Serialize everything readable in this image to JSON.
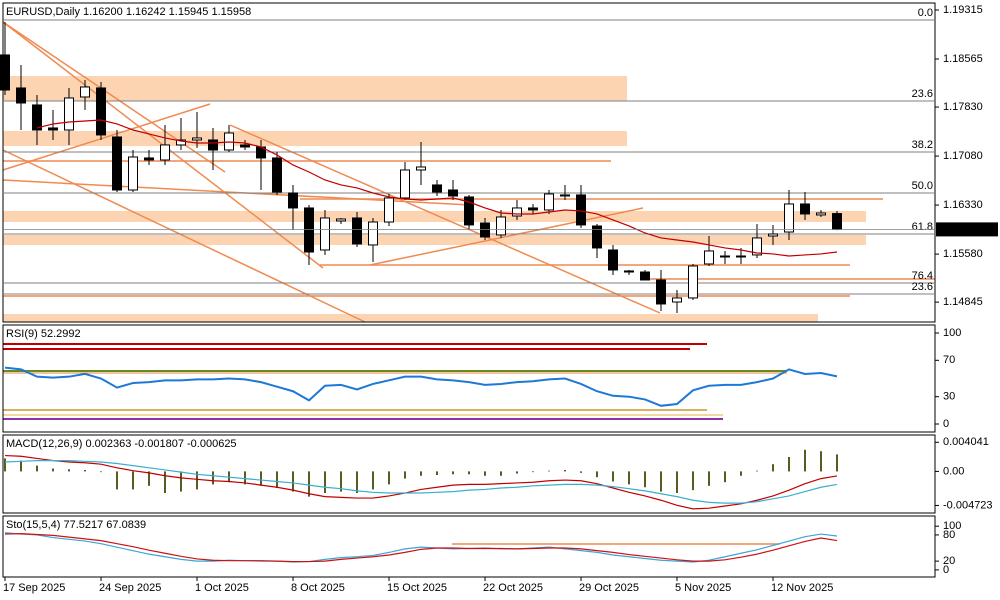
{
  "chart_data": [
    {
      "type": "candlestick",
      "title": "EURUSD,Daily  1.16200 1.16242 1.15945 1.15958",
      "categories": [
        "17 Sep 2025",
        null,
        null,
        null,
        null,
        null,
        "24 Sep 2025",
        null,
        null,
        null,
        null,
        null,
        "1 Oct 2025",
        null,
        null,
        null,
        null,
        null,
        "8 Oct 2025",
        null,
        null,
        null,
        null,
        null,
        "15 Oct 2025",
        null,
        null,
        null,
        null,
        null,
        "22 Oct 2025",
        null,
        null,
        null,
        null,
        null,
        "29 Oct 2025",
        null,
        null,
        null,
        null,
        null,
        "5 Nov 2025",
        null,
        null,
        null,
        null,
        null,
        "12 Nov 2025",
        null,
        null,
        null,
        null
      ],
      "open": [
        1.18627,
        1.18122,
        1.17862,
        1.1751,
        1.17479,
        1.17984,
        1.18122,
        1.17372,
        1.16561,
        1.17051,
        1.1702,
        1.1725,
        1.17326,
        1.17326,
        1.17173,
        1.1725,
        1.17219,
        1.17051,
        1.16515,
        1.16286,
        1.15643,
        1.16087,
        1.16133,
        1.1572,
        1.16071,
        1.16439,
        1.16867,
        1.16638,
        1.16561,
        1.16454,
        1.16056,
        1.15873,
        1.16163,
        1.16286,
        1.16255,
        1.16469,
        1.16485,
        1.1601,
        1.15643,
        1.15322,
        1.15306,
        1.15184,
        1.14847,
        1.14909,
        1.15429,
        1.15536,
        1.15536,
        1.15567,
        1.15857,
        1.15918,
        1.16347,
        1.16179,
        1.162
      ],
      "high": [
        1.19131,
        1.18474,
        1.18015,
        1.17785,
        1.18122,
        1.18244,
        1.18213,
        1.17479,
        1.17173,
        1.17173,
        1.17556,
        1.17663,
        1.17754,
        1.1751,
        1.17556,
        1.17326,
        1.17326,
        1.17142,
        1.16638,
        1.16332,
        1.16255,
        1.16133,
        1.16224,
        1.16133,
        1.165,
        1.16989,
        1.17295,
        1.16714,
        1.16714,
        1.16485,
        1.16133,
        1.16255,
        1.16408,
        1.16347,
        1.16561,
        1.16638,
        1.16638,
        1.16041,
        1.1572,
        1.15337,
        1.15337,
        1.15337,
        1.15031,
        1.15429,
        1.15857,
        1.15628,
        1.15674,
        1.16041,
        1.16026,
        1.16561,
        1.1653,
        1.16255,
        1.16242
      ],
      "low": [
        1.18015,
        1.17479,
        1.1725,
        1.17326,
        1.1725,
        1.17785,
        1.17326,
        1.1653,
        1.1653,
        1.16944,
        1.16944,
        1.17173,
        1.17204,
        1.16867,
        1.17142,
        1.17173,
        1.16561,
        1.16485,
        1.15949,
        1.15414,
        1.15567,
        1.16041,
        1.15689,
        1.15459,
        1.1601,
        1.16408,
        1.16638,
        1.16469,
        1.16408,
        1.15949,
        1.15796,
        1.15827,
        1.16102,
        1.16194,
        1.16194,
        1.16408,
        1.1598,
        1.15521,
        1.15261,
        1.15261,
        1.15184,
        1.1471,
        1.14679,
        1.14878,
        1.15398,
        1.15429,
        1.15429,
        1.15521,
        1.1572,
        1.15796,
        1.16102,
        1.16148,
        1.15945
      ],
      "close": [
        1.18091,
        1.17892,
        1.17479,
        1.17479,
        1.17969,
        1.18137,
        1.17403,
        1.16561,
        1.17066,
        1.1702,
        1.1725,
        1.17326,
        1.17357,
        1.17173,
        1.17433,
        1.17219,
        1.17051,
        1.1653,
        1.16286,
        1.15612,
        1.16133,
        1.16117,
        1.15735,
        1.16071,
        1.16439,
        1.16867,
        1.16913,
        1.1653,
        1.16469,
        1.16026,
        1.15842,
        1.16148,
        1.16286,
        1.16255,
        1.165,
        1.16485,
        1.16026,
        1.15674,
        1.15337,
        1.15306,
        1.15184,
        1.14817,
        1.14909,
        1.15398,
        1.15628,
        1.15551,
        1.15551,
        1.15827,
        1.15888,
        1.16347,
        1.16194,
        1.16209,
        1.15958
      ],
      "up_color": "#ffffff",
      "down_color": "#000000",
      "series": [
        {
          "style": "line",
          "color": "#c00000",
          "values": [
            null,
            null,
            1.1751,
            1.17571,
            1.17601,
            1.17617,
            1.17632,
            1.17571,
            1.17479,
            1.17418,
            1.17357,
            1.17311,
            1.1728,
            1.1728,
            1.17295,
            1.1728,
            1.17219,
            1.17097,
            1.16944,
            1.16836,
            1.16714,
            1.16638,
            1.16592,
            1.16515,
            1.16454,
            1.16423,
            1.16408,
            1.16423,
            1.16439,
            1.16377,
            1.16286,
            1.16209,
            1.16194,
            1.16194,
            1.16224,
            1.16255,
            1.1624,
            1.16194,
            1.16102,
            1.1601,
            1.15903,
            1.15827,
            1.15796,
            1.15765,
            1.1572,
            1.15674,
            1.15643,
            1.15597,
            1.15582,
            1.15551,
            1.15567,
            1.15582,
            1.15612
          ]
        }
      ],
      "levels": [
        {
          "value": 1.19162,
          "label": "0.0"
        },
        {
          "value": 1.17923,
          "label": "23.6"
        },
        {
          "value": 1.17142,
          "label": "38.2"
        },
        {
          "value": 1.16515,
          "label": "50.0"
        },
        {
          "value": 1.15888,
          "label": "61.8"
        },
        {
          "value": 1.15138,
          "label": "76.4"
        },
        {
          "value": 1.1497,
          "label": "23.6"
        }
      ],
      "ylim": [
        1.14541,
        1.19422
      ],
      "yticks": [
        1.19315,
        1.18565,
        {
          "value": 1.1783,
          "label": "1.17830"
        },
        {
          "value": 1.1708,
          "label": "1.17080"
        },
        {
          "value": 1.1633,
          "label": "1.16330"
        },
        {
          "value": 1.1558,
          "label": "1.15580"
        },
        1.14845
      ],
      "grid": false
    },
    {
      "type": "line",
      "title": "RSI(9) 52.2992",
      "series": [
        {
          "style": "line",
          "color": "#1e78d8",
          "values": [
            62,
            60,
            52,
            51,
            52,
            55,
            50,
            40,
            45,
            46,
            48,
            48,
            49,
            49,
            50,
            49,
            46,
            41,
            36,
            26,
            42,
            43,
            38,
            44,
            48,
            52,
            52,
            49,
            48,
            46,
            43,
            44,
            46,
            47,
            49,
            50,
            44,
            36,
            31,
            30,
            27,
            20,
            22,
            37,
            42,
            43,
            43,
            46,
            50,
            60,
            55,
            56,
            52.2992
          ]
        }
      ],
      "ylim": [
        -8.8,
        108.8
      ],
      "yticks": [
        100,
        70,
        30,
        0
      ],
      "grid": false
    },
    {
      "type": "bar",
      "title": "MACD(12,26,9) 0.002363 -0.001807 -0.000625",
      "series": [
        {
          "style": "bar",
          "color": "#5a5a22",
          "values": [
            0.0018,
            0.0015,
            0.0008,
            0.0004,
            0.0003,
            0.0002,
            -0.0001,
            -0.0025,
            -0.0025,
            -0.002,
            -0.003,
            -0.0028,
            -0.0025,
            -0.0018,
            -0.0015,
            -0.0018,
            -0.002,
            -0.0023,
            -0.0028,
            -0.0035,
            -0.003,
            -0.0028,
            -0.003,
            -0.0025,
            -0.0018,
            -0.001,
            -0.0006,
            -0.0005,
            -0.0004,
            -0.0004,
            -0.0006,
            -0.0006,
            -0.0003,
            -0.0001,
            0.0001,
            0.0002,
            -0.0002,
            -0.0008,
            -0.0014,
            -0.0018,
            -0.0022,
            -0.0028,
            -0.003,
            -0.0026,
            -0.002,
            -0.0015,
            -0.0006,
            0.0001,
            0.001,
            0.002,
            0.003,
            0.0028,
            0.002363
          ]
        },
        {
          "style": "line",
          "color": "#c00000",
          "values": [
            0.0022,
            0.0021,
            0.0018,
            0.0015,
            0.0013,
            0.0012,
            0.001,
            0.0005,
            0.0001,
            -0.0002,
            -0.0006,
            -0.0009,
            -0.0011,
            -0.0013,
            -0.0014,
            -0.0016,
            -0.0019,
            -0.0022,
            -0.0026,
            -0.0031,
            -0.0035,
            -0.0036,
            -0.0037,
            -0.0037,
            -0.0034,
            -0.003,
            -0.0025,
            -0.0022,
            -0.0019,
            -0.0018,
            -0.0018,
            -0.0017,
            -0.0016,
            -0.0015,
            -0.0013,
            -0.0012,
            -0.0013,
            -0.0017,
            -0.0023,
            -0.0029,
            -0.0034,
            -0.004,
            -0.0047,
            -0.0052,
            -0.0051,
            -0.0048,
            -0.0045,
            -0.004,
            -0.0034,
            -0.0026,
            -0.0017,
            -0.001,
            -0.000625
          ]
        },
        {
          "style": "line",
          "color": "#3aaed0",
          "values": [
            0.0013,
            0.0014,
            0.0015,
            0.0015,
            0.0015,
            0.0014,
            0.0013,
            0.0011,
            0.0008,
            0.0005,
            0.0002,
            -0.0001,
            -0.0004,
            -0.0006,
            -0.0008,
            -0.001,
            -0.0012,
            -0.0014,
            -0.0016,
            -0.0019,
            -0.0022,
            -0.0024,
            -0.0027,
            -0.0029,
            -0.003,
            -0.003,
            -0.003,
            -0.0029,
            -0.0028,
            -0.0026,
            -0.0025,
            -0.0023,
            -0.0022,
            -0.002,
            -0.0019,
            -0.0018,
            -0.0018,
            -0.0019,
            -0.0021,
            -0.0024,
            -0.0027,
            -0.0031,
            -0.0035,
            -0.004,
            -0.0043,
            -0.0044,
            -0.0044,
            -0.0042,
            -0.0038,
            -0.0034,
            -0.0028,
            -0.0022,
            -0.001807
          ]
        }
      ],
      "ylim": [
        -0.00577,
        0.00505
      ],
      "yticks": [
        0.004041,
        {
          "value": 0,
          "label": "0.00"
        },
        -0.004723
      ],
      "grid": false
    },
    {
      "type": "line",
      "title": "Sto(15,5,4) 77.5217 67.0839",
      "series": [
        {
          "style": "line",
          "color": "#3aa6d8",
          "values": [
            85,
            82,
            80,
            74,
            70,
            66,
            60,
            52,
            44,
            36,
            30,
            24,
            20,
            20,
            22,
            21,
            20,
            20,
            18,
            19,
            24,
            28,
            30,
            33,
            40,
            48,
            52,
            50,
            48,
            49,
            50,
            48,
            48,
            50,
            52,
            48,
            44,
            40,
            34,
            30,
            26,
            22,
            20,
            18,
            22,
            30,
            38,
            46,
            56,
            66,
            76,
            82,
            77.5217
          ]
        },
        {
          "style": "line",
          "color": "#d01010",
          "values": [
            82,
            83,
            81,
            79,
            75,
            71,
            67,
            60,
            53,
            45,
            38,
            31,
            25,
            22,
            21,
            21,
            21,
            20,
            19,
            19,
            20,
            24,
            27,
            30,
            34,
            40,
            47,
            50,
            50,
            49,
            49,
            49,
            48,
            49,
            50,
            50,
            48,
            44,
            40,
            35,
            31,
            27,
            23,
            20,
            20,
            23,
            29,
            36,
            45,
            55,
            65,
            73,
            67.0839
          ]
        }
      ],
      "ylim": [
        -16.3,
        123.3
      ],
      "yticks": [
        100,
        80,
        20,
        0
      ],
      "grid": false
    }
  ]
}
